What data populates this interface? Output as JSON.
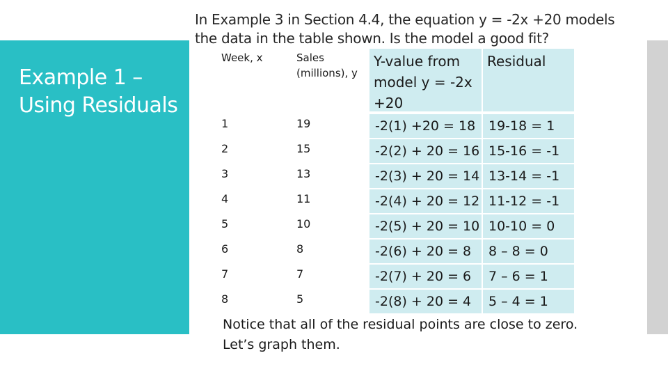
{
  "slide": {
    "title": "Example 1 – Using Residuals",
    "question": "In Example 3 in Section 4.4, the equation y = -2x +20 models the data in the table shown. Is the model a good fit?",
    "note": "Notice that all of the residual points are close to zero. Let’s graph them."
  },
  "colors": {
    "accent": "#29bfc5",
    "table_highlight": "#cfecf0",
    "side_bar": "#d2d2d2"
  },
  "table": {
    "headers": [
      "Week, x",
      "Sales (millions), y",
      "Y-value from model y = -2x +20",
      "Residual"
    ],
    "rows": [
      [
        "1",
        "19",
        "-2(1) +20 = 18",
        "19-18 = 1"
      ],
      [
        "2",
        "15",
        "-2(2) + 20 = 16",
        "15-16 = -1"
      ],
      [
        "3",
        "13",
        "-2(3) + 20 = 14",
        "13-14 = -1"
      ],
      [
        "4",
        "11",
        "-2(4) + 20 = 12",
        "11-12 = -1"
      ],
      [
        "5",
        "10",
        "-2(5) + 20 = 10",
        "10-10 = 0"
      ],
      [
        "6",
        "8",
        "-2(6) + 20 = 8",
        "8 – 8 = 0"
      ],
      [
        "7",
        "7",
        "-2(7) + 20 = 6",
        "7 – 6 = 1"
      ],
      [
        "8",
        "5",
        "-2(8) + 20 = 4",
        "5 – 4 = 1"
      ]
    ]
  }
}
